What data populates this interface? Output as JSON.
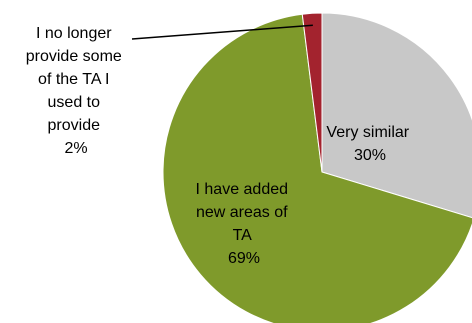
{
  "chart_data": {
    "type": "pie",
    "slices": [
      {
        "label_lines": [
          "Very similar",
          "30%"
        ],
        "value": 30,
        "color": "#c8c8c8"
      },
      {
        "label_lines": [
          "I have added",
          "new areas of",
          "TA",
          "69%"
        ],
        "value": 69,
        "color": "#7f9a2b"
      },
      {
        "label_lines": [
          "I no longer",
          "provide some",
          "of the TA I",
          "used to",
          "provide",
          "2%"
        ],
        "value": 2,
        "color": "#a3232e"
      }
    ]
  }
}
